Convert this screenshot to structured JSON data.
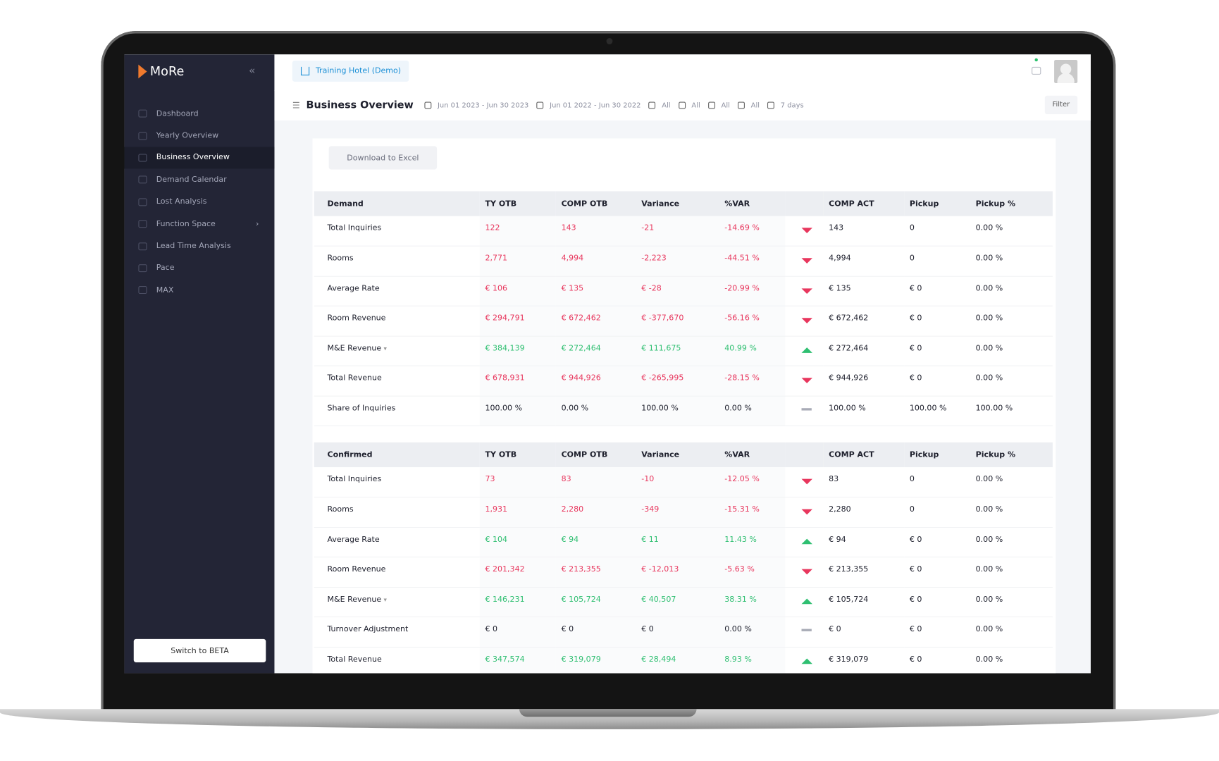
{
  "sidebar": {
    "logo": "MoRe",
    "nav": [
      {
        "label": "Dashboard"
      },
      {
        "label": "Yearly Overview"
      },
      {
        "label": "Business Overview",
        "active": true
      },
      {
        "label": "Demand Calendar"
      },
      {
        "label": "Lost Analysis"
      },
      {
        "label": "Function Space",
        "submenu": true
      },
      {
        "label": "Lead Time Analysis"
      },
      {
        "label": "Pace"
      },
      {
        "label": "MAX"
      }
    ],
    "beta_button": "Switch to BETA"
  },
  "topbar": {
    "hotel": "Training Hotel (Demo)"
  },
  "toolbar": {
    "title": "Business Overview",
    "filters": [
      "Jun 01 2023 - Jun 30 2023",
      "Jun 01 2022 - Jun 30 2022",
      "All",
      "All",
      "All",
      "All",
      "7 days"
    ],
    "filter_button": "Filter"
  },
  "content": {
    "download_button": "Download to Excel",
    "tables": [
      {
        "header": [
          "Demand",
          "TY OTB",
          "COMP OTB",
          "Variance",
          "%VAR",
          "COMP ACT",
          "Pickup",
          "Pickup %"
        ],
        "rows": [
          {
            "status": "down",
            "cells": [
              "Total Inquiries",
              "122",
              "143",
              "-21",
              "-14.69 %",
              "143",
              "0",
              "0.00 %"
            ]
          },
          {
            "status": "down",
            "cells": [
              "Rooms",
              "2,771",
              "4,994",
              "-2,223",
              "-44.51 %",
              "4,994",
              "0",
              "0.00 %"
            ]
          },
          {
            "status": "down",
            "cells": [
              "Average Rate",
              "€ 106",
              "€ 135",
              "€ -28",
              "-20.99 %",
              "€ 135",
              "€ 0",
              "0.00 %"
            ]
          },
          {
            "status": "down",
            "cells": [
              "Room Revenue",
              "€ 294,791",
              "€ 672,462",
              "€ -377,670",
              "-56.16 %",
              "€ 672,462",
              "€ 0",
              "0.00 %"
            ]
          },
          {
            "status": "up",
            "dropdown": true,
            "cells": [
              "M&E Revenue",
              "€ 384,139",
              "€ 272,464",
              "€ 111,675",
              "40.99 %",
              "€ 272,464",
              "€ 0",
              "0.00 %"
            ]
          },
          {
            "status": "down",
            "cells": [
              "Total Revenue",
              "€ 678,931",
              "€ 944,926",
              "€ -265,995",
              "-28.15 %",
              "€ 944,926",
              "€ 0",
              "0.00 %"
            ]
          },
          {
            "status": "neutral",
            "cells": [
              "Share of Inquiries",
              "100.00 %",
              "0.00 %",
              "100.00 %",
              "0.00 %",
              "100.00 %",
              "100.00 %",
              "100.00 %"
            ]
          }
        ]
      },
      {
        "header": [
          "Confirmed",
          "TY OTB",
          "COMP OTB",
          "Variance",
          "%VAR",
          "COMP ACT",
          "Pickup",
          "Pickup %"
        ],
        "rows": [
          {
            "status": "down",
            "cells": [
              "Total Inquiries",
              "73",
              "83",
              "-10",
              "-12.05 %",
              "83",
              "0",
              "0.00 %"
            ]
          },
          {
            "status": "down",
            "cells": [
              "Rooms",
              "1,931",
              "2,280",
              "-349",
              "-15.31 %",
              "2,280",
              "0",
              "0.00 %"
            ]
          },
          {
            "status": "up",
            "cells": [
              "Average Rate",
              "€ 104",
              "€ 94",
              "€ 11",
              "11.43 %",
              "€ 94",
              "€ 0",
              "0.00 %"
            ]
          },
          {
            "status": "down",
            "cells": [
              "Room Revenue",
              "€ 201,342",
              "€ 213,355",
              "€ -12,013",
              "-5.63 %",
              "€ 213,355",
              "€ 0",
              "0.00 %"
            ]
          },
          {
            "status": "up",
            "dropdown": true,
            "cells": [
              "M&E Revenue",
              "€ 146,231",
              "€ 105,724",
              "€ 40,507",
              "38.31 %",
              "€ 105,724",
              "€ 0",
              "0.00 %"
            ]
          },
          {
            "status": "neutral",
            "cells": [
              "Turnover Adjustment",
              "€ 0",
              "€ 0",
              "€ 0",
              "0.00 %",
              "€ 0",
              "€ 0",
              "0.00 %"
            ]
          },
          {
            "status": "up",
            "cells": [
              "Total Revenue",
              "€ 347,574",
              "€ 319,079",
              "€ 28,494",
              "8.93 %",
              "€ 319,079",
              "€ 0",
              "0.00 %"
            ]
          }
        ]
      }
    ]
  }
}
